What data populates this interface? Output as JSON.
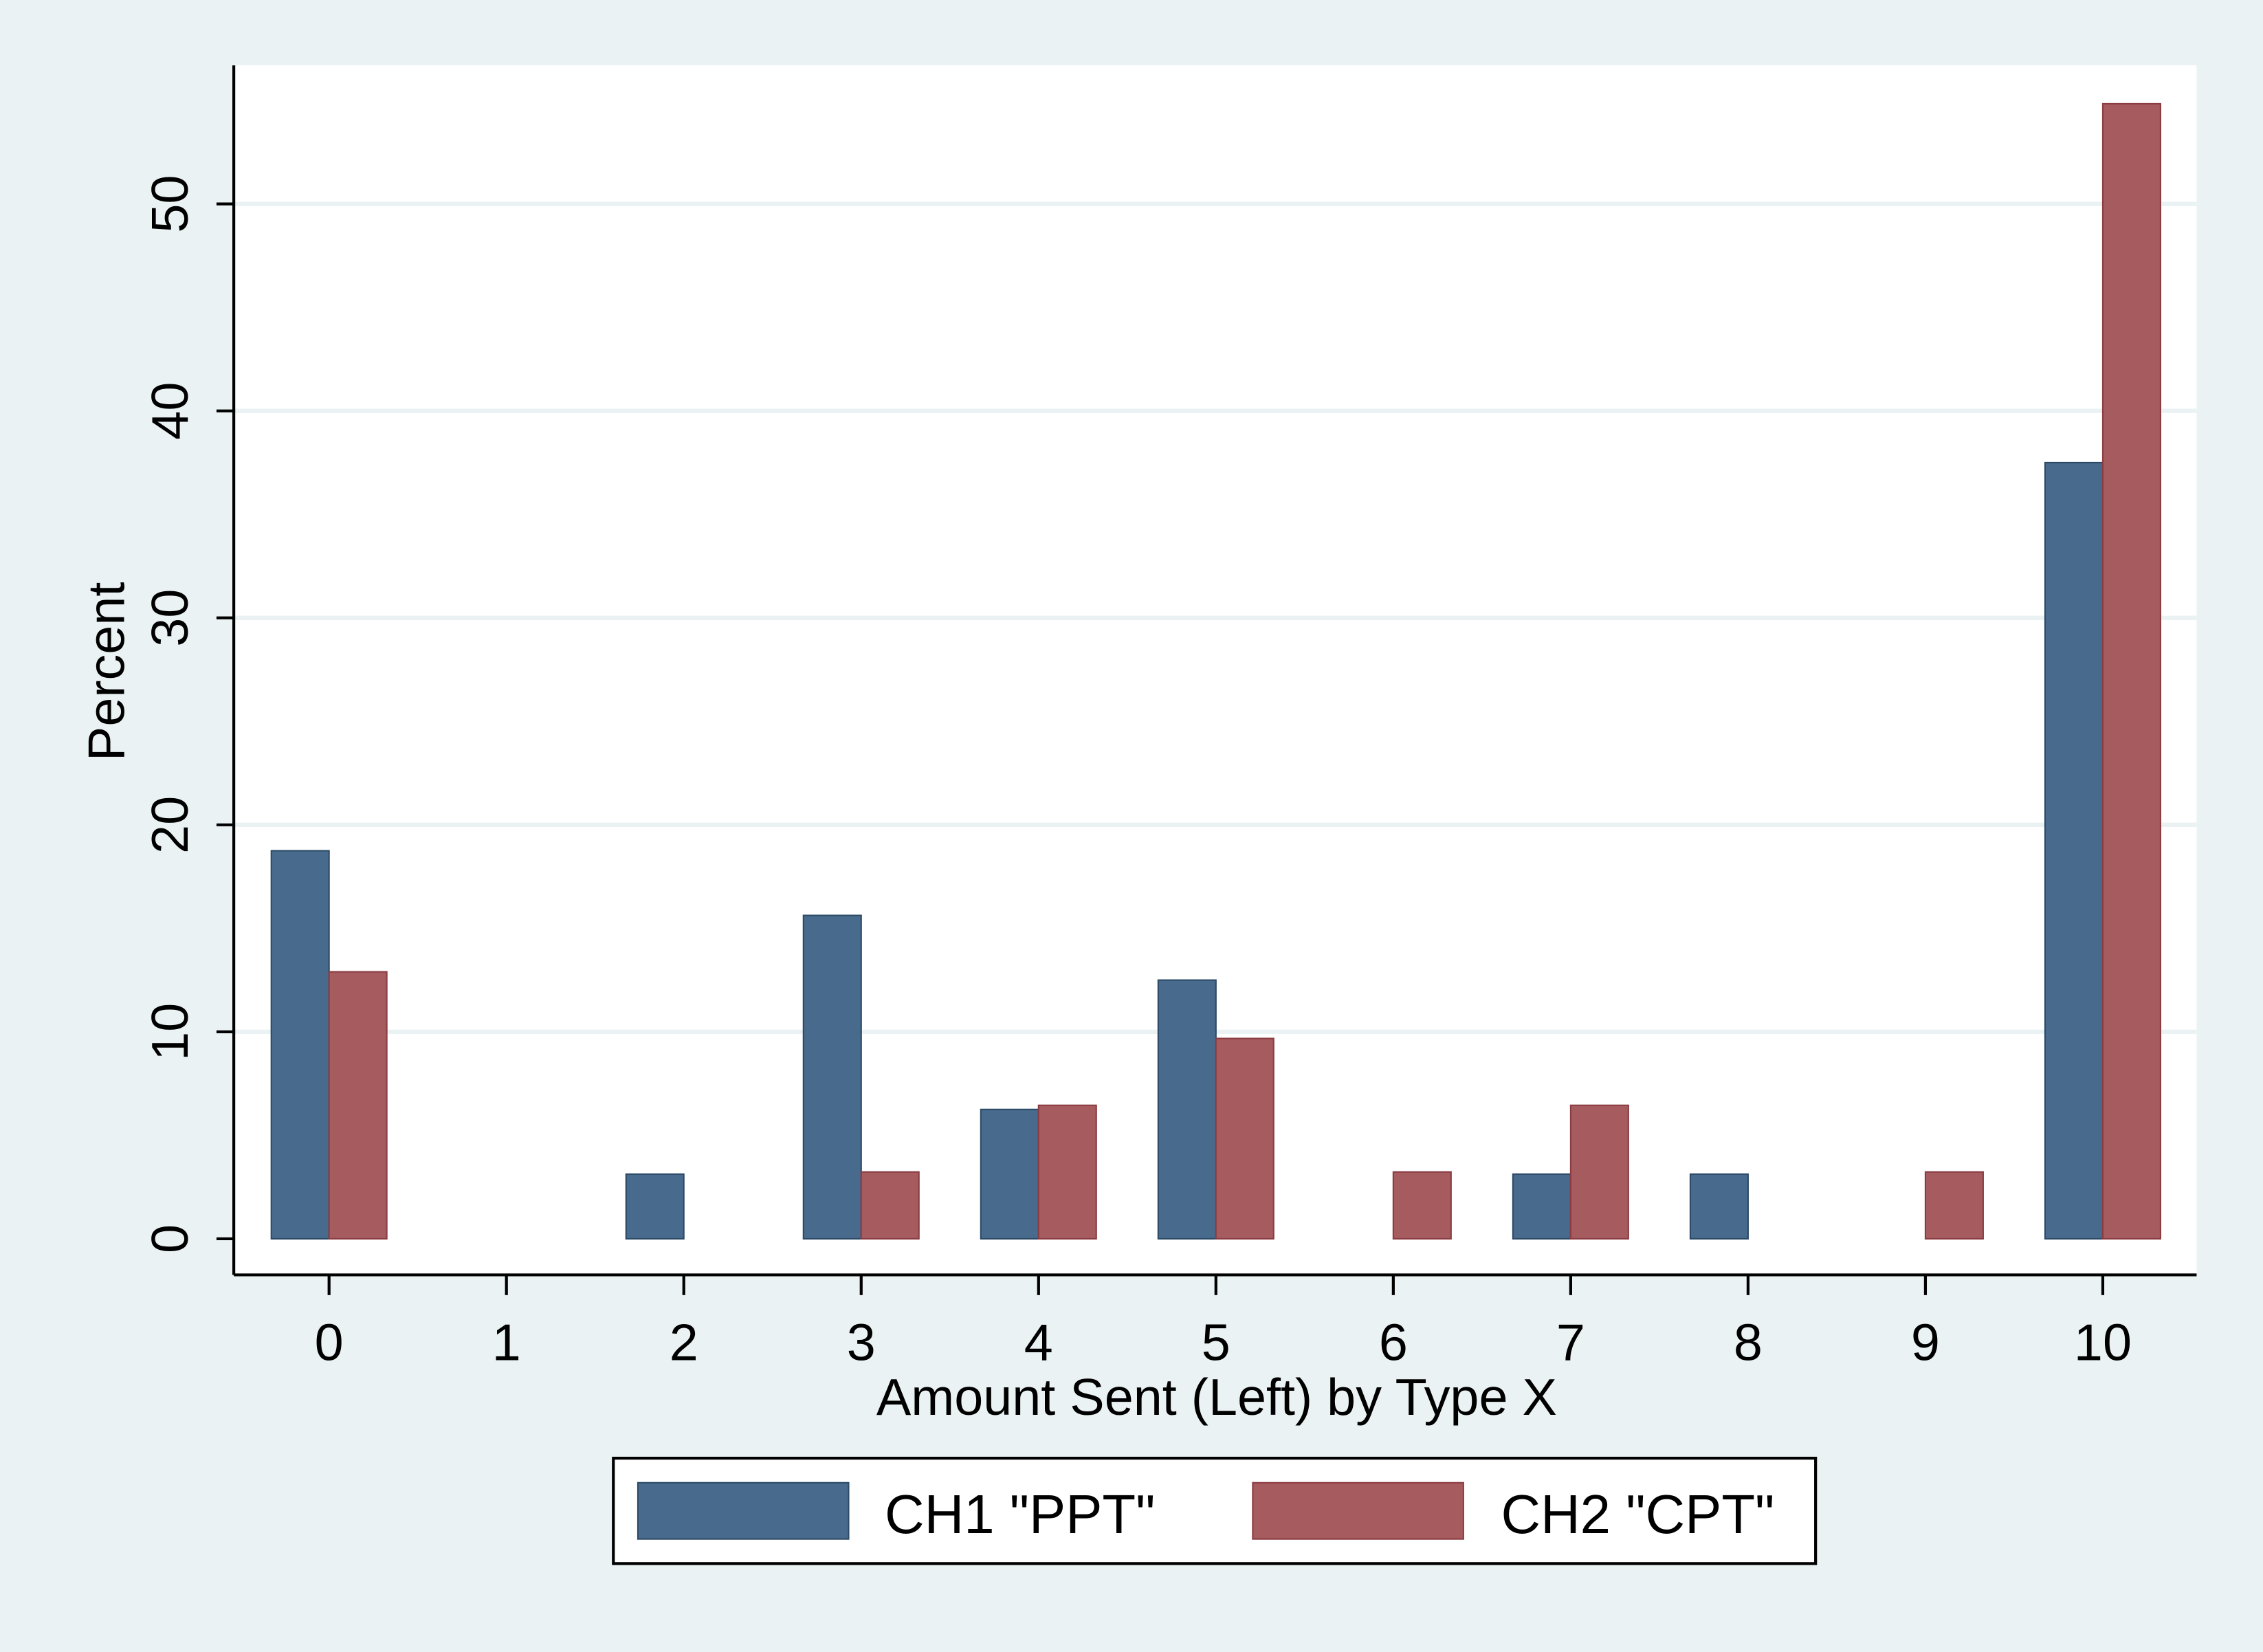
{
  "chart_data": {
    "type": "bar",
    "title": "",
    "xlabel": "Amount Sent (Left) by Type X",
    "ylabel": "Percent",
    "categories": [
      "0",
      "1",
      "2",
      "3",
      "4",
      "5",
      "6",
      "7",
      "8",
      "9",
      "10"
    ],
    "ylim": [
      0,
      57
    ],
    "yticks": [
      "0",
      "10",
      "20",
      "30",
      "40",
      "50"
    ],
    "grid": true,
    "legend_placement": "bottom",
    "series": [
      {
        "name": "CH1 \"PPT\"",
        "color": "#486b8d",
        "values": [
          18.75,
          0,
          3.125,
          15.625,
          6.25,
          12.5,
          0,
          3.125,
          3.125,
          0,
          37.5
        ]
      },
      {
        "name": "CH2 \"CPT\"",
        "color": "#a65b5f",
        "values": [
          12.9,
          0,
          0,
          3.23,
          6.45,
          9.68,
          3.23,
          6.45,
          0,
          3.23,
          54.84
        ]
      }
    ],
    "colors": {
      "background": "#eaf2f3",
      "plot_background": "#ffffff",
      "grid": "#eaf2f3"
    }
  }
}
